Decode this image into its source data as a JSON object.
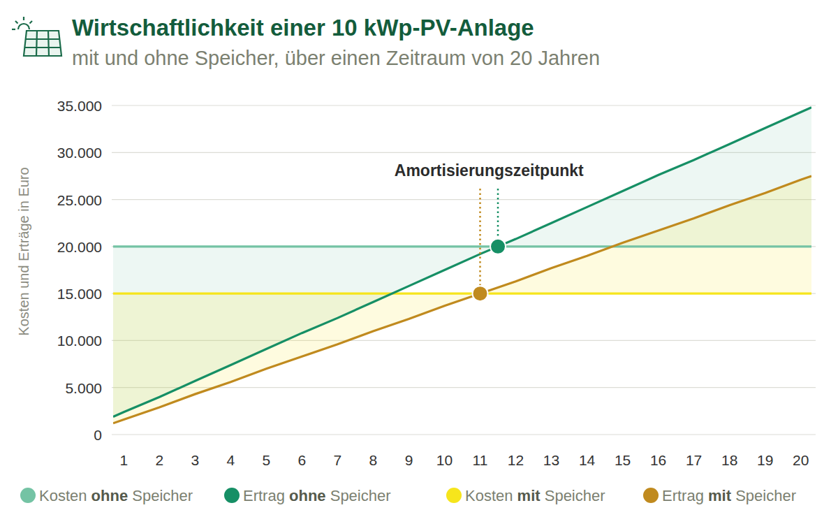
{
  "chart_data": {
    "type": "line",
    "title": "Wirtschaftlichkeit einer 10 kWp-PV-Anlage",
    "subtitle": "mit und ohne Speicher, über einen Zeitraum von 20 Jahren",
    "y_label": "Kosten und Erträge in Euro",
    "x": [
      0.7,
      1,
      2,
      3,
      4,
      5,
      6,
      7,
      8,
      9,
      10,
      11,
      12,
      13,
      14,
      15,
      16,
      17,
      18,
      19,
      20,
      20.3
    ],
    "series": [
      {
        "name": "Kosten ohne Speicher",
        "color": "#74c3a4",
        "values": [
          20000,
          20000,
          20000,
          20000,
          20000,
          20000,
          20000,
          20000,
          20000,
          20000,
          20000,
          20000,
          20000,
          20000,
          20000,
          20000,
          20000,
          20000,
          20000,
          20000,
          20000,
          20000
        ]
      },
      {
        "name": "Ertrag ohne Speicher",
        "color": "#168f65",
        "values": [
          1900,
          2400,
          4000,
          5700,
          7400,
          9100,
          10800,
          12400,
          14100,
          15800,
          17500,
          19200,
          20800,
          22500,
          24200,
          25900,
          27600,
          29200,
          30900,
          32600,
          34300,
          34800
        ]
      },
      {
        "name": "Kosten mit Speicher",
        "color": "#f6e51c",
        "values": [
          15000,
          15000,
          15000,
          15000,
          15000,
          15000,
          15000,
          15000,
          15000,
          15000,
          15000,
          15000,
          15000,
          15000,
          15000,
          15000,
          15000,
          15000,
          15000,
          15000,
          15000,
          15000
        ]
      },
      {
        "name": "Ertrag mit Speicher",
        "color": "#c08a1e",
        "values": [
          1200,
          1600,
          2900,
          4300,
          5600,
          7000,
          8300,
          9600,
          11000,
          12300,
          13700,
          15000,
          16300,
          17700,
          19000,
          20400,
          21700,
          23000,
          24400,
          25700,
          27100,
          27500
        ]
      }
    ],
    "xlim": [
      0.7,
      20.3
    ],
    "xticks": [
      1,
      2,
      3,
      4,
      5,
      6,
      7,
      8,
      9,
      10,
      11,
      12,
      13,
      14,
      15,
      16,
      17,
      18,
      19,
      20
    ],
    "ylim": [
      0,
      35000
    ],
    "yticks": [
      0,
      {
        "value": 5000,
        "label": "5.000"
      },
      {
        "value": 10000,
        "label": "10.000"
      },
      {
        "value": 15000,
        "label": "15.000"
      },
      {
        "value": 20000,
        "label": "20.000"
      },
      {
        "value": 25000,
        "label": "25.000"
      },
      {
        "value": 30000,
        "label": "30.000"
      },
      {
        "value": 35000,
        "label": "35.000"
      }
    ],
    "grid": true,
    "legend": "bottom",
    "annotation": {
      "text": "Amortisierungszeitpunkt",
      "points": [
        {
          "x": 11.5,
          "y": 20000,
          "color": "#168f65"
        },
        {
          "x": 11,
          "y": 15000,
          "color": "#c08a1e"
        }
      ]
    }
  }
}
